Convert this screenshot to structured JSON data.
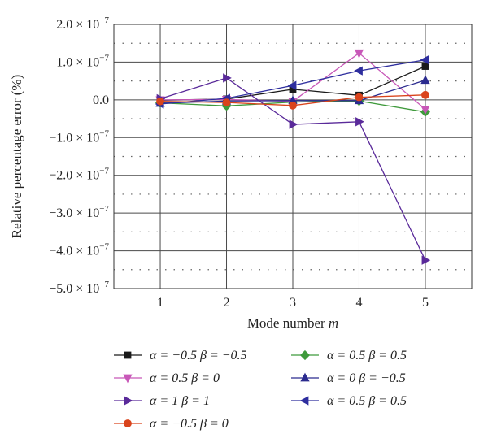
{
  "chart_data": {
    "type": "line",
    "title": "",
    "xlabel": "Mode number m",
    "ylabel": "Relative percentage error (%)",
    "x": [
      1,
      2,
      3,
      4,
      5
    ],
    "xlim": [
      0.3,
      5.7
    ],
    "ylim": [
      -5e-07,
      2e-07
    ],
    "yticks": [
      2e-07,
      1e-07,
      0.0,
      -1e-07,
      -2e-07,
      -3e-07,
      -4e-07,
      -5e-07
    ],
    "ytick_labels": [
      {
        "mantissa": "2.0",
        "exp": "−7"
      },
      {
        "mantissa": "1.0",
        "exp": "−7"
      },
      {
        "mantissa": "0.0",
        "exp": ""
      },
      {
        "mantissa": "−1.0",
        "exp": "−7"
      },
      {
        "mantissa": "−2.0",
        "exp": "−7"
      },
      {
        "mantissa": "−3.0",
        "exp": "−7"
      },
      {
        "mantissa": "−4.0",
        "exp": "−7"
      },
      {
        "mantissa": "−5.0",
        "exp": "−7"
      }
    ],
    "xticks": [
      1,
      2,
      3,
      4,
      5
    ],
    "xtick_labels": [
      "1",
      "2",
      "3",
      "4",
      "5"
    ],
    "grid": true,
    "legend_position": "bottom",
    "series": [
      {
        "name": "α = −0.5 β = −0.5",
        "marker": "square",
        "color": "#1a1a1a",
        "values": [
          -1e-09,
          2e-09,
          2.8e-08,
          1.2e-08,
          8.9e-08
        ]
      },
      {
        "name": "α = 0.5 β = 0.5",
        "marker": "diamond",
        "color": "#3f9a3c",
        "values": [
          -8e-09,
          -1.6e-08,
          -6e-09,
          -3e-09,
          -3.2e-08
        ]
      },
      {
        "name": "α = 0.5 β = 0",
        "marker": "triangle-down",
        "color": "#c858b8",
        "values": [
          0.0,
          1e-09,
          -4e-09,
          1.24e-07,
          -2.5e-08
        ]
      },
      {
        "name": "α = 0 β = −0.5",
        "marker": "triangle-up",
        "color": "#2b2b8f",
        "values": [
          -9e-09,
          -3e-09,
          -2e-09,
          -2e-09,
          5.2e-08
        ]
      },
      {
        "name": "α = 1 β = 1",
        "marker": "triangle-right",
        "color": "#5a2a9a",
        "values": [
          3e-09,
          5.8e-08,
          -6.5e-08,
          -5.8e-08,
          -4.25e-07
        ]
      },
      {
        "name": "α = 0.5 β = 0.5",
        "marker": "triangle-left",
        "color": "#2e2e9e",
        "values": [
          -1.1e-08,
          4e-09,
          3.8e-08,
          7.7e-08,
          1.06e-07
        ]
      },
      {
        "name": "α = −0.5 β = 0",
        "marker": "circle",
        "color": "#d9441c",
        "values": [
          -4e-09,
          -7e-09,
          -1.5e-08,
          7e-09,
          1.3e-08
        ]
      }
    ]
  }
}
